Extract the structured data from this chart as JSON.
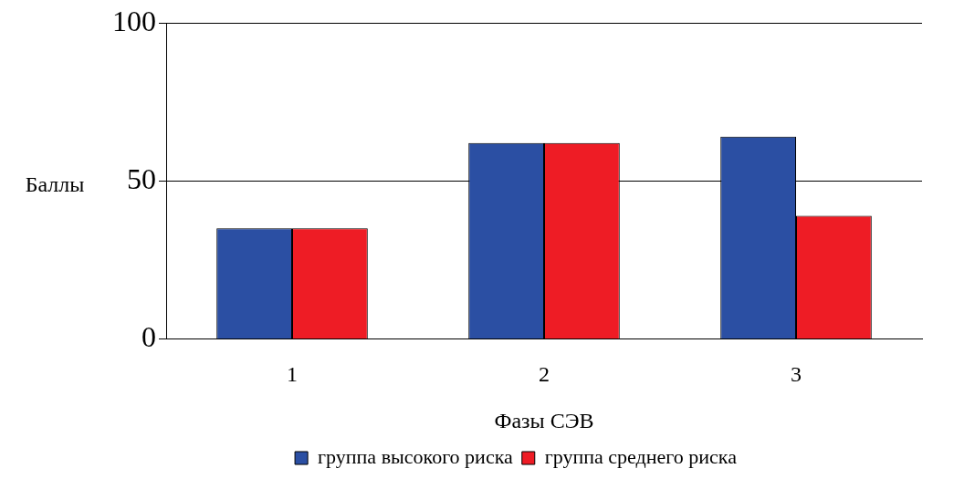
{
  "chart_data": {
    "type": "bar",
    "xlabel": "Фазы СЭВ",
    "ylabel": "Баллы",
    "categories": [
      "1",
      "2",
      "3"
    ],
    "series": [
      {
        "name": "группа высокого риска",
        "color": "#2b4fa3",
        "values": [
          35,
          62,
          64
        ]
      },
      {
        "name": "группа среднего риска",
        "color": "#ee1c25",
        "values": [
          35,
          62,
          39
        ]
      }
    ],
    "ylim": [
      0,
      100
    ],
    "yticks": [
      0,
      50,
      100
    ],
    "grid": "y",
    "legend": "bottom"
  }
}
